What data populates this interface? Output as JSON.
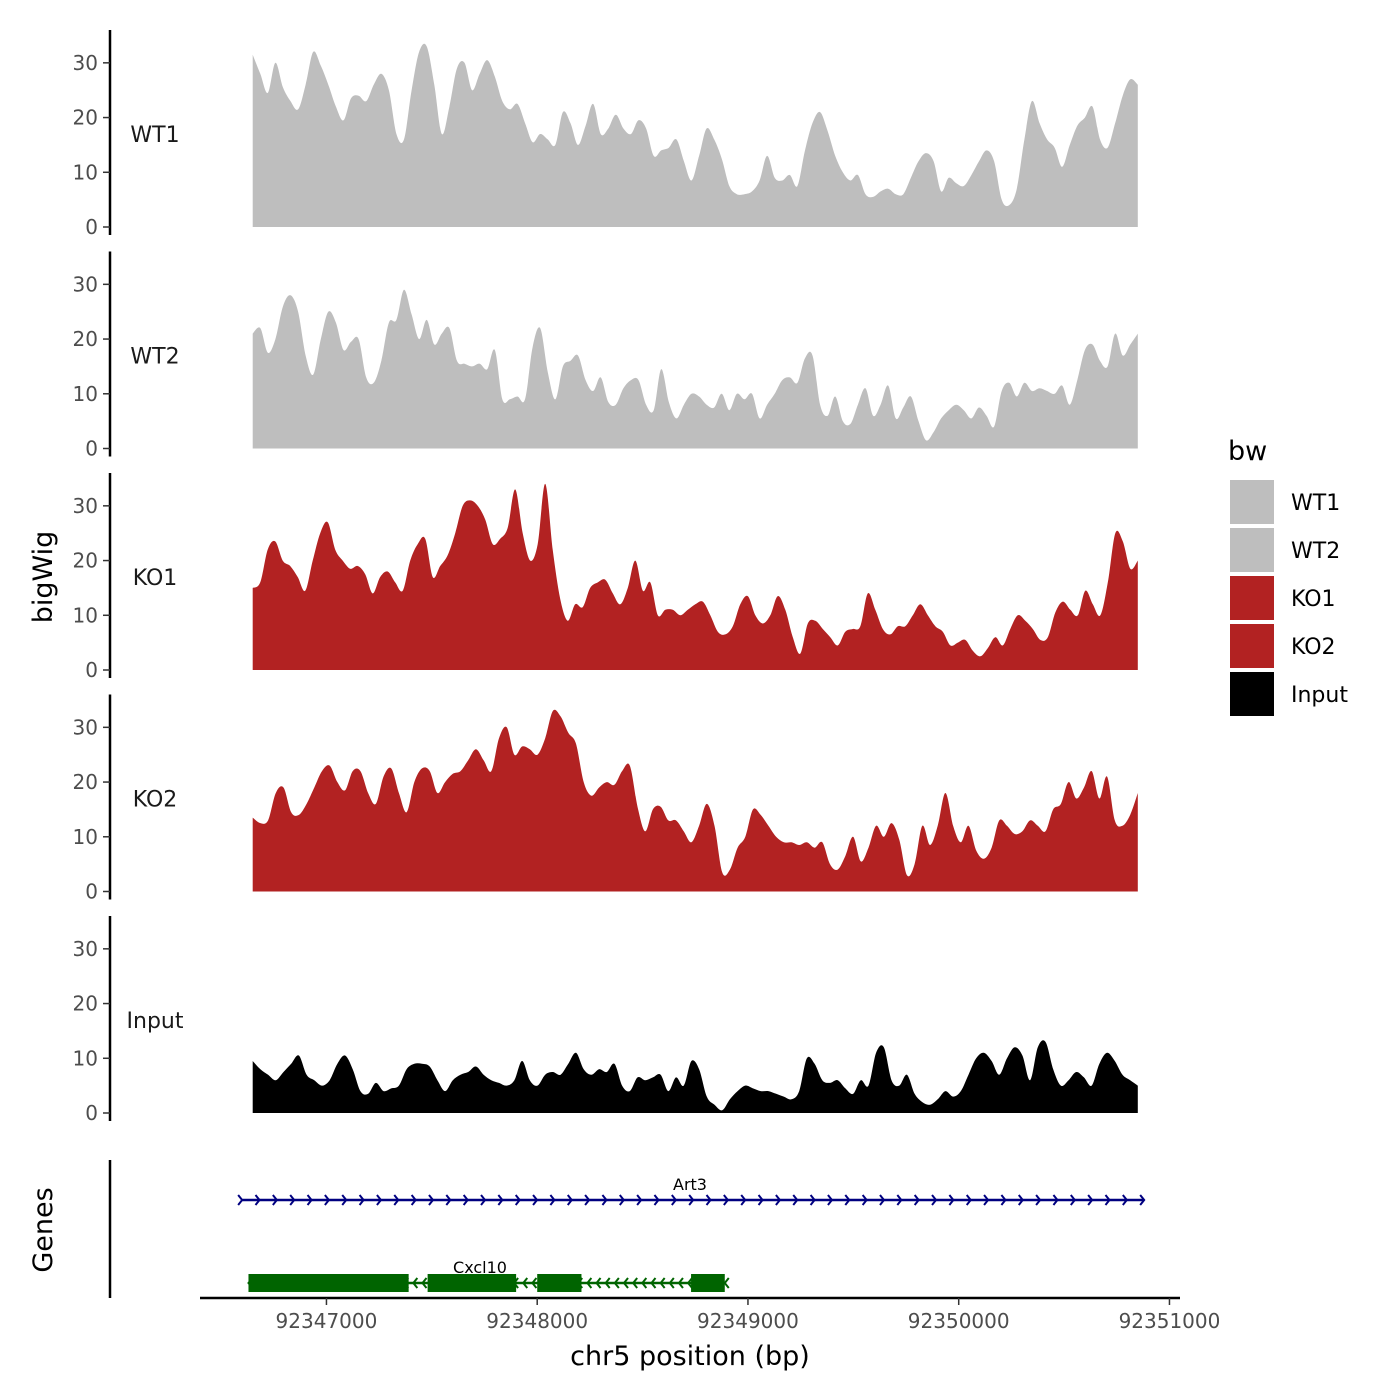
{
  "chart_data": {
    "type": "area",
    "xlabel": "chr5 position (bp)",
    "ylabel": "bigWig",
    "genes_label": "Genes",
    "xlim": [
      92346400,
      92351050
    ],
    "ylim": [
      0,
      36
    ],
    "x_ticks": [
      92347000,
      92348000,
      92349000,
      92350000,
      92351000
    ],
    "x_tick_labels": [
      "92347000",
      "92348000",
      "92349000",
      "92350000",
      "92351000"
    ],
    "y_ticks": [
      0,
      10,
      20,
      30
    ],
    "y_tick_labels": [
      "0",
      "10",
      "20",
      "30"
    ],
    "legend": {
      "title": "bw",
      "position": "right",
      "items": [
        {
          "label": "WT1",
          "color": "#bebebe"
        },
        {
          "label": "WT2",
          "color": "#bebebe"
        },
        {
          "label": "KO1",
          "color": "#b22222"
        },
        {
          "label": "KO2",
          "color": "#b22222"
        },
        {
          "label": "Input",
          "color": "#000000"
        }
      ]
    },
    "x_start": 92346650,
    "x_end": 92350850,
    "series": [
      {
        "name": "WT1",
        "color": "#bebebe",
        "values": [
          31.5,
          28,
          24.5,
          30,
          25.5,
          23,
          21.5,
          26,
          32,
          29.5,
          26,
          22,
          19.5,
          23.5,
          24,
          23,
          26,
          28,
          25,
          17,
          16,
          25,
          32,
          33,
          26,
          17,
          22,
          29,
          30,
          25,
          28,
          30.5,
          27.5,
          23,
          21.5,
          22.5,
          19,
          15.5,
          17,
          16,
          15,
          21,
          19,
          15,
          18.5,
          22.5,
          17,
          18,
          20.5,
          18,
          17,
          19.5,
          18,
          13,
          14,
          14.5,
          16,
          12,
          8.5,
          13,
          18,
          16,
          12.5,
          7.5,
          6,
          6,
          6.5,
          8.5,
          13,
          9,
          8.5,
          9.5,
          7.5,
          14,
          19,
          21,
          17.5,
          13,
          10,
          8.5,
          9.5,
          6,
          5.5,
          6.5,
          7,
          6,
          6,
          9,
          12,
          13.5,
          12,
          6.5,
          9,
          8,
          7.5,
          9.5,
          12,
          14,
          12,
          5,
          4,
          7,
          16,
          23,
          19,
          16,
          14.5,
          11,
          15,
          18.5,
          20,
          22,
          16,
          14.5,
          19,
          24,
          27,
          26
        ]
      },
      {
        "name": "WT2",
        "color": "#bebebe",
        "values": [
          21,
          22,
          17.5,
          20,
          26,
          28,
          25,
          17,
          13.5,
          20,
          25,
          23,
          18,
          19.5,
          20,
          13,
          12,
          16,
          23,
          23.5,
          29,
          24.5,
          20,
          23.5,
          19,
          21,
          22,
          16,
          15.5,
          15,
          15.5,
          14.5,
          18,
          9,
          9,
          9.5,
          9,
          18.5,
          22,
          14,
          9,
          15,
          16,
          17,
          12.5,
          10.5,
          13,
          8.5,
          8,
          11,
          12.5,
          12.5,
          8,
          7,
          14.5,
          8.5,
          5.5,
          8,
          10,
          9.5,
          8,
          7.5,
          10,
          7,
          10,
          9,
          10,
          5.5,
          8,
          10,
          12.5,
          13,
          12,
          16.5,
          17,
          8,
          6,
          9.5,
          5,
          4.5,
          8,
          11,
          6,
          8,
          11.5,
          5.5,
          7.5,
          9.5,
          5,
          1.5,
          3,
          5.5,
          7,
          8,
          7,
          5.5,
          7.5,
          6,
          4,
          10.5,
          12,
          9.5,
          12,
          10.5,
          11,
          10.5,
          10,
          11.5,
          8,
          12.5,
          18,
          19,
          16,
          15,
          21,
          17,
          19,
          21
        ]
      },
      {
        "name": "KO1",
        "color": "#b22222",
        "values": [
          15,
          16,
          22,
          23.5,
          20,
          19,
          17,
          14.5,
          20,
          25,
          27,
          22,
          20,
          18.5,
          19,
          17.5,
          14,
          17,
          18,
          16,
          14.5,
          20,
          23,
          24,
          17,
          19,
          21,
          25,
          30,
          31,
          30,
          27.5,
          23,
          24,
          26,
          33,
          25,
          20,
          23,
          34,
          22,
          13,
          9,
          12,
          11.5,
          15,
          16,
          16.5,
          14,
          12,
          15,
          20,
          14.5,
          16,
          10,
          11,
          11,
          10,
          11,
          12,
          12.5,
          10,
          7,
          6.5,
          8,
          12,
          13.5,
          10,
          8.5,
          10,
          13.5,
          11,
          6,
          3,
          8.5,
          9,
          7.5,
          6,
          4.5,
          7,
          7.5,
          8,
          14,
          11,
          7.5,
          6.5,
          8,
          8,
          10,
          12,
          10,
          8,
          7,
          4.5,
          5,
          5.5,
          3.5,
          2.5,
          4,
          6,
          4.5,
          7.5,
          10,
          9,
          7.5,
          5.5,
          6,
          10.5,
          12.5,
          11,
          10,
          14.5,
          12,
          10,
          16,
          25,
          23.5,
          18.5,
          20
        ]
      },
      {
        "name": "KO2",
        "color": "#b22222",
        "values": [
          13.5,
          12.5,
          13,
          18,
          19,
          14.5,
          14,
          16,
          19,
          22,
          23,
          20,
          18.5,
          22,
          22,
          18,
          16,
          21,
          22.5,
          18,
          14.5,
          20,
          22.5,
          22,
          18,
          20,
          21.5,
          22,
          24,
          26,
          24,
          22,
          28,
          30,
          25,
          26.5,
          26,
          25,
          28,
          33,
          32,
          29,
          27,
          20,
          17.5,
          19,
          20,
          19.5,
          22,
          23,
          15.5,
          11,
          15,
          15.5,
          13,
          13,
          11,
          9,
          12,
          16,
          12,
          3.5,
          4,
          8,
          10,
          15,
          14,
          12,
          10,
          9,
          9,
          8.5,
          9,
          8,
          9,
          5,
          4,
          6.5,
          10,
          5.5,
          8,
          12,
          10,
          12.5,
          9.5,
          3,
          5,
          12,
          8.5,
          12,
          18,
          12,
          9,
          12,
          7.5,
          6,
          8,
          13,
          12,
          10.5,
          11,
          13,
          12,
          11,
          15,
          16,
          20,
          17,
          19,
          22,
          17,
          21,
          13,
          12,
          14,
          18
        ]
      },
      {
        "name": "Input",
        "color": "#000000",
        "values": [
          9.5,
          8,
          7,
          6,
          7.5,
          9,
          10.5,
          7,
          6,
          5,
          6,
          9,
          10.5,
          8,
          4,
          3.5,
          5.5,
          4,
          4.5,
          5,
          8,
          9,
          9,
          8.5,
          6,
          4,
          6,
          7,
          7.5,
          8.5,
          7,
          6,
          5.5,
          5,
          6,
          9.5,
          6,
          5,
          7,
          7.5,
          7,
          9,
          11,
          8,
          7,
          8,
          7.5,
          9,
          5,
          4,
          6.5,
          6,
          6.5,
          7,
          4,
          6.5,
          5,
          9.5,
          8,
          3,
          1.5,
          0.5,
          2.5,
          4,
          5,
          4.5,
          4,
          4,
          3.5,
          3,
          2.5,
          4,
          10,
          9,
          6,
          5.5,
          6,
          4.5,
          3.5,
          6,
          5,
          11,
          12,
          6,
          5,
          7,
          3.5,
          2,
          1.5,
          2.5,
          4,
          3,
          4,
          7,
          10,
          11,
          9.5,
          7,
          10,
          12,
          10.5,
          6,
          12,
          13,
          8,
          5,
          6,
          7.5,
          6.5,
          5,
          9,
          11,
          9.5,
          7,
          6,
          5
        ]
      }
    ],
    "genes": [
      {
        "name": "Art3",
        "strand": "+",
        "start": 92346600,
        "end": 92350880,
        "color": "#000080",
        "exons": []
      },
      {
        "name": "Cxcl10",
        "strand": "-",
        "start": 92346630,
        "end": 92348890,
        "color": "#006400",
        "exons": [
          [
            92346630,
            92347390
          ],
          [
            92347480,
            92347900
          ],
          [
            92348000,
            92348210
          ],
          [
            92348730,
            92348890
          ]
        ]
      }
    ]
  }
}
